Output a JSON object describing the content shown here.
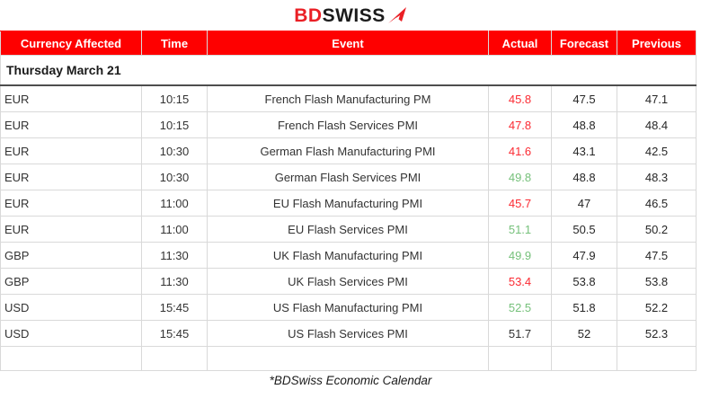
{
  "logo": {
    "part1": "BD",
    "part2": "SWISS",
    "arrow_icon": "red-dart-arrow"
  },
  "colors": {
    "header_background": "#fe0000",
    "header_text": "#ffffff",
    "logo_red": "#ea1f25",
    "logo_dark": "#1b1b1b",
    "actual_worse_red": "#fb2b33",
    "actual_better_green": "#76c17b",
    "neutral_text": "#333333",
    "row_border": "#d9d9d9",
    "date_row_border": "#4d4d4d"
  },
  "table": {
    "headers": {
      "currency": "Currency Affected",
      "time": "Time",
      "event": "Event",
      "actual": "Actual",
      "forecast": "Forecast",
      "previous": "Previous"
    },
    "date_row": "Thursday March 21",
    "rows": [
      {
        "currency": "EUR",
        "time": "10:15",
        "event": "French Flash Manufacturing PM",
        "actual": "45.8",
        "actual_color": "red",
        "forecast": "47.5",
        "previous": "47.1"
      },
      {
        "currency": "EUR",
        "time": "10:15",
        "event": "French Flash Services PMI",
        "actual": "47.8",
        "actual_color": "red",
        "forecast": "48.8",
        "previous": "48.4"
      },
      {
        "currency": "EUR",
        "time": "10:30",
        "event": "German Flash Manufacturing PMI",
        "actual": "41.6",
        "actual_color": "red",
        "forecast": "43.1",
        "previous": "42.5"
      },
      {
        "currency": "EUR",
        "time": "10:30",
        "event": "German Flash Services PMI",
        "actual": "49.8",
        "actual_color": "green",
        "forecast": "48.8",
        "previous": "48.3"
      },
      {
        "currency": "EUR",
        "time": "11:00",
        "event": "EU Flash Manufacturing PMI",
        "actual": "45.7",
        "actual_color": "red",
        "forecast": "47",
        "previous": "46.5"
      },
      {
        "currency": "EUR",
        "time": "11:00",
        "event": "EU Flash Services PMI",
        "actual": "51.1",
        "actual_color": "green",
        "forecast": "50.5",
        "previous": "50.2"
      },
      {
        "currency": "GBP",
        "time": "11:30",
        "event": "UK Flash Manufacturing PMI",
        "actual": "49.9",
        "actual_color": "green",
        "forecast": "47.9",
        "previous": "47.5"
      },
      {
        "currency": "GBP",
        "time": "11:30",
        "event": "UK Flash Services PMI",
        "actual": "53.4",
        "actual_color": "red",
        "forecast": "53.8",
        "previous": "53.8"
      },
      {
        "currency": "USD",
        "time": "15:45",
        "event": "US Flash Manufacturing PMI",
        "actual": "52.5",
        "actual_color": "green",
        "forecast": "51.8",
        "previous": "52.2"
      },
      {
        "currency": "USD",
        "time": "15:45",
        "event": "US Flash Services PMI",
        "actual": "51.7",
        "actual_color": "black",
        "forecast": "52",
        "previous": "52.3"
      }
    ]
  },
  "footer": {
    "note": "*BDSwiss Economic Calendar"
  }
}
